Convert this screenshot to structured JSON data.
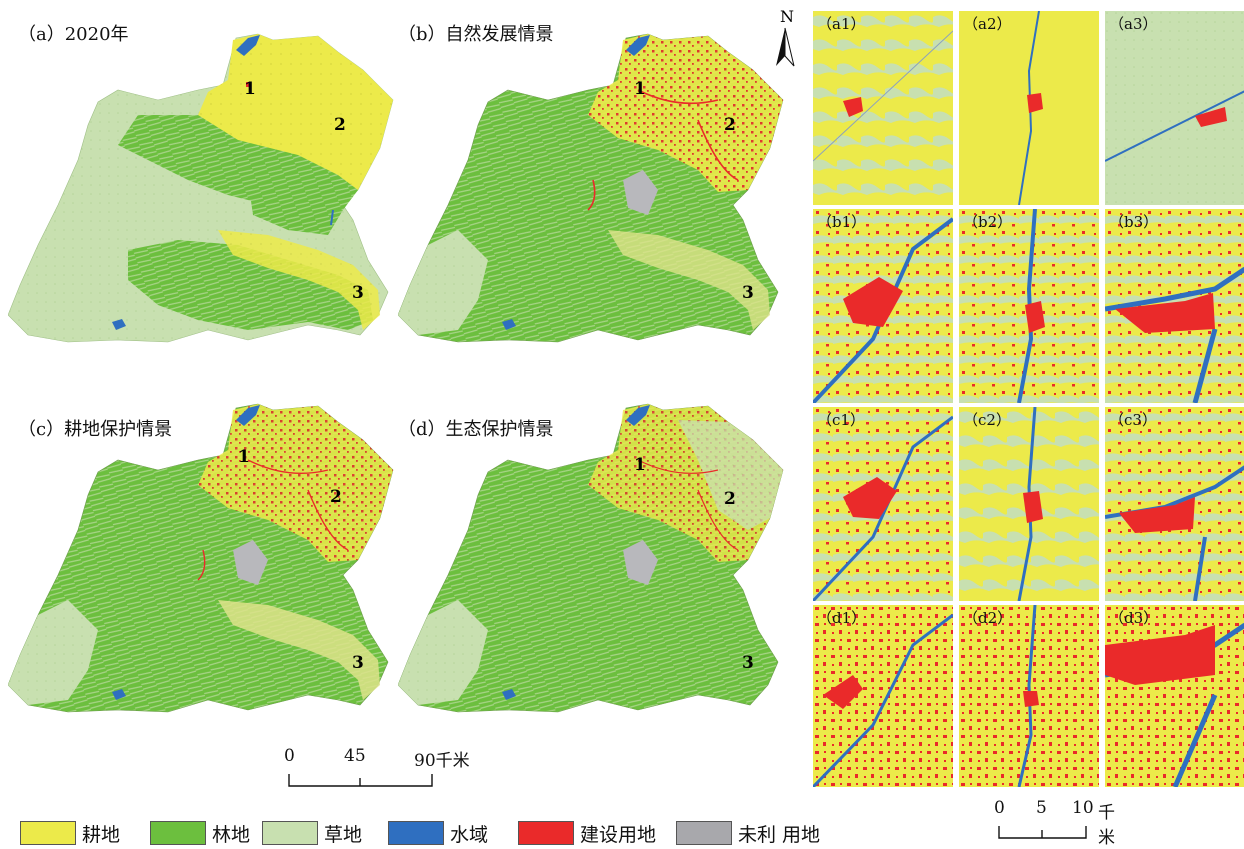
{
  "panels": {
    "a": "（a）2020年",
    "b": "（b）自然发展情景",
    "c": "（c）耕地保护情景",
    "d": "（d）生态保护情景"
  },
  "site_numbers": [
    "1",
    "2",
    "3"
  ],
  "insets": {
    "row_a": [
      "（a1）",
      "（a2）",
      "（a3）"
    ],
    "row_b": [
      "（b1）",
      "（b2）",
      "（b3）"
    ],
    "row_c": [
      "（c1）",
      "（c2）",
      "（c3）"
    ],
    "row_d": [
      "（d1）",
      "（d2）",
      "（d3）"
    ]
  },
  "north_arrow": "N",
  "scale_main": {
    "t0": "0",
    "t1": "45",
    "t2": "90千米"
  },
  "scale_inset": {
    "t0": "0",
    "t1": "5",
    "t2": "10",
    "unit": "千米"
  },
  "legend": [
    {
      "label": "耕地",
      "color": "#ecea4a"
    },
    {
      "label": "林地",
      "color": "#6cbf3e"
    },
    {
      "label": "草地",
      "color": "#c8e0b0"
    },
    {
      "label": "水域",
      "color": "#2f6fc0"
    },
    {
      "label": "建设用地",
      "color": "#ea2a2a"
    },
    {
      "label": "未利 用地",
      "color": "#a8a8ac"
    }
  ]
}
